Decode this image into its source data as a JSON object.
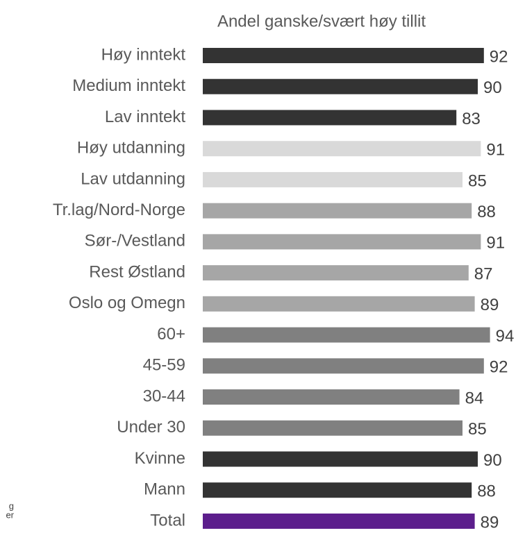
{
  "chart_data": {
    "type": "hbar",
    "title": "Andel ganske/svært høy tillit",
    "categories": [
      "Høy inntekt",
      "Medium inntekt",
      "Lav inntekt",
      "Høy utdanning",
      "Lav utdanning",
      "Tr.lag/Nord-Norge",
      "Sør-/Vestland",
      "Rest Østland",
      "Oslo og Omegn",
      "60+",
      "45-59",
      "30-44",
      "Under 30",
      "Kvinne",
      "Mann",
      "Total"
    ],
    "values": [
      92,
      90,
      83,
      91,
      85,
      88,
      91,
      87,
      89,
      94,
      92,
      84,
      85,
      90,
      88,
      89
    ],
    "colors": [
      "#333333",
      "#333333",
      "#333333",
      "#d9d9d9",
      "#d9d9d9",
      "#a6a6a6",
      "#a6a6a6",
      "#a6a6a6",
      "#a6a6a6",
      "#808080",
      "#808080",
      "#808080",
      "#808080",
      "#333333",
      "#333333",
      "#5c1e8c"
    ],
    "xlim": [
      0,
      100
    ],
    "annotations": [
      "g",
      "er"
    ]
  }
}
